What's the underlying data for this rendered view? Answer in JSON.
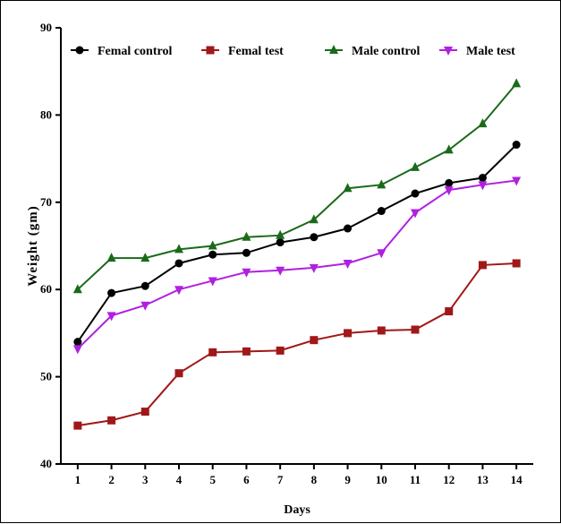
{
  "chart_data": {
    "type": "line",
    "title": "",
    "xlabel": "Days",
    "ylabel": "Weight (gm)",
    "x": [
      1,
      2,
      3,
      4,
      5,
      6,
      7,
      8,
      9,
      10,
      11,
      12,
      13,
      14
    ],
    "xlim": [
      0.5,
      14.5
    ],
    "ylim": [
      40,
      90
    ],
    "y_ticks": [
      40,
      50,
      60,
      70,
      80,
      90
    ],
    "grid": false,
    "legend_position": "top",
    "series": [
      {
        "name": "Femal control",
        "color": "#000000",
        "marker": "circle",
        "values": [
          54,
          59.6,
          60.4,
          63,
          64,
          64.2,
          65.4,
          66,
          67,
          69,
          71,
          72.2,
          72.8,
          76.6
        ]
      },
      {
        "name": "Femal test",
        "color": "#a01818",
        "marker": "square",
        "values": [
          44.4,
          45,
          46,
          50.4,
          52.8,
          52.9,
          53,
          54.2,
          55,
          55.3,
          55.4,
          57.5,
          62.8,
          63
        ]
      },
      {
        "name": "Male control",
        "color": "#1a6a1a",
        "marker": "triangle-up",
        "values": [
          60,
          63.6,
          63.6,
          64.6,
          65,
          66,
          66.2,
          68,
          71.6,
          72,
          74,
          76,
          79,
          83.6
        ]
      },
      {
        "name": "Male test",
        "color": "#b020e0",
        "marker": "triangle-down",
        "values": [
          53.2,
          57,
          58.2,
          60,
          61,
          62,
          62.2,
          62.5,
          63,
          64.2,
          68.8,
          71.4,
          72,
          72.5
        ]
      }
    ]
  }
}
